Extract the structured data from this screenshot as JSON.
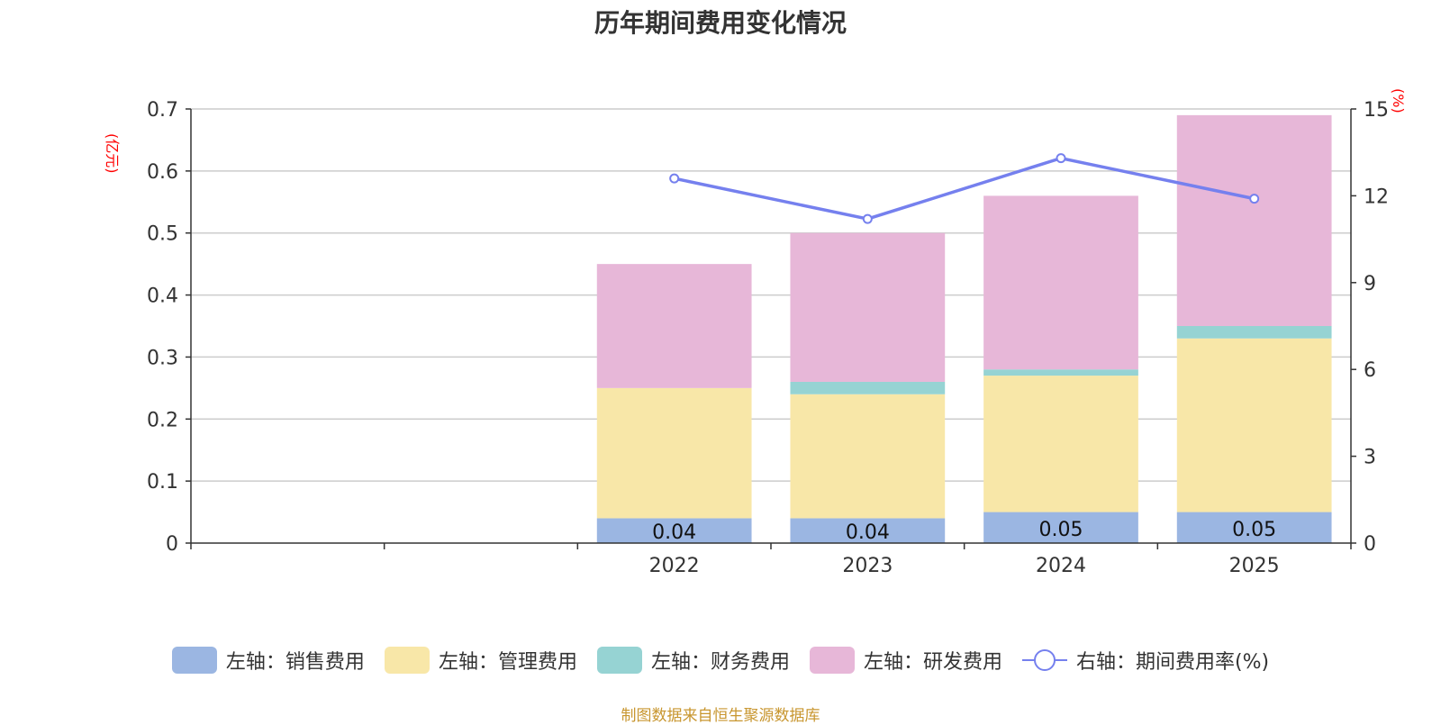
{
  "chart_data": {
    "type": "bar",
    "stacked": true,
    "title": "历年期间费用变化情况",
    "categories": [
      "",
      "",
      "2022",
      "2023",
      "2024",
      "2025"
    ],
    "y_left_label": "(亿元)",
    "y_right_label": "(%)",
    "y_left_lim": [
      0,
      0.7
    ],
    "y_left_ticks": [
      "0",
      "0.1",
      "0.2",
      "0.3",
      "0.4",
      "0.5",
      "0.6",
      "0.7"
    ],
    "y_right_lim": [
      0,
      15
    ],
    "y_right_ticks": [
      "0",
      "3",
      "6",
      "9",
      "12",
      "15"
    ],
    "series": [
      {
        "name": "左轴：销售费用",
        "axis": "left",
        "kind": "bar",
        "color": "#9bb6e2",
        "values": [
          null,
          null,
          0.04,
          0.04,
          0.05,
          0.05
        ],
        "labels": [
          "",
          "",
          "0.04",
          "0.04",
          "0.05",
          "0.05"
        ]
      },
      {
        "name": "左轴：管理费用",
        "axis": "left",
        "kind": "bar",
        "color": "#f8e7a8",
        "values": [
          null,
          null,
          0.21,
          0.2,
          0.22,
          0.28
        ]
      },
      {
        "name": "左轴：财务费用",
        "axis": "left",
        "kind": "bar",
        "color": "#96d3d3",
        "values": [
          null,
          null,
          0.0,
          0.02,
          0.01,
          0.02
        ]
      },
      {
        "name": "左轴：研发费用",
        "axis": "left",
        "kind": "bar",
        "color": "#e7b7d8",
        "values": [
          null,
          null,
          0.2,
          0.24,
          0.28,
          0.34
        ]
      },
      {
        "name": "右轴：期间费用率(%)",
        "axis": "right",
        "kind": "line",
        "color": "#7580ee",
        "values": [
          null,
          null,
          12.6,
          11.2,
          13.3,
          11.9
        ]
      }
    ],
    "legend_position": "bottom",
    "grid": true
  },
  "colors": {
    "unit_label": "#ff0000",
    "axis": "#333333",
    "grid": "#cccccc",
    "source_text": "#c8962f"
  },
  "source_text": "制图数据来自恒生聚源数据库"
}
